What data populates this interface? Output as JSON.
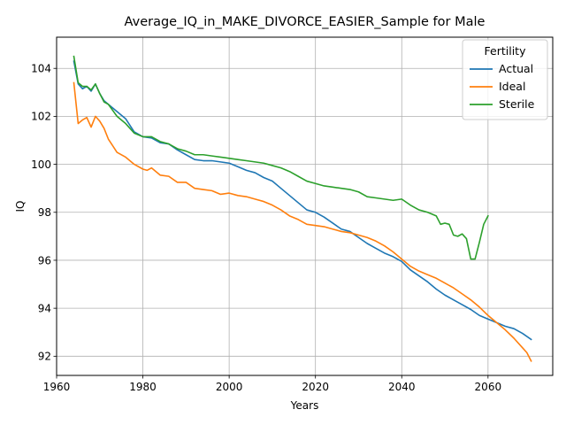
{
  "chart_data": {
    "type": "line",
    "title": "Average_IQ_in_MAKE_DIVORCE_EASIER_Sample for Male",
    "xlabel": "Years",
    "ylabel": "IQ",
    "xlim": [
      1960,
      2075
    ],
    "ylim": [
      91.2,
      105.3
    ],
    "xticks": [
      1960,
      1980,
      2000,
      2020,
      2040,
      2060
    ],
    "yticks": [
      92,
      94,
      96,
      98,
      100,
      102,
      104
    ],
    "grid": true,
    "legend": {
      "title": "Fertility",
      "placement": "top-right"
    },
    "series": [
      {
        "name": "Actual",
        "color": "#1f77b4",
        "points": [
          [
            1964,
            104.3
          ],
          [
            1965,
            103.35
          ],
          [
            1966,
            103.15
          ],
          [
            1967,
            103.25
          ],
          [
            1968,
            103.05
          ],
          [
            1969,
            103.35
          ],
          [
            1970,
            102.95
          ],
          [
            1971,
            102.65
          ],
          [
            1972,
            102.5
          ],
          [
            1974,
            102.2
          ],
          [
            1976,
            101.9
          ],
          [
            1978,
            101.35
          ],
          [
            1980,
            101.15
          ],
          [
            1982,
            101.1
          ],
          [
            1984,
            100.9
          ],
          [
            1986,
            100.85
          ],
          [
            1988,
            100.6
          ],
          [
            1990,
            100.4
          ],
          [
            1992,
            100.2
          ],
          [
            1994,
            100.15
          ],
          [
            1996,
            100.15
          ],
          [
            1998,
            100.1
          ],
          [
            2000,
            100.05
          ],
          [
            2002,
            99.9
          ],
          [
            2004,
            99.75
          ],
          [
            2006,
            99.65
          ],
          [
            2008,
            99.45
          ],
          [
            2010,
            99.3
          ],
          [
            2012,
            99.0
          ],
          [
            2014,
            98.7
          ],
          [
            2016,
            98.4
          ],
          [
            2018,
            98.1
          ],
          [
            2020,
            98.0
          ],
          [
            2022,
            97.8
          ],
          [
            2024,
            97.55
          ],
          [
            2026,
            97.3
          ],
          [
            2028,
            97.2
          ],
          [
            2030,
            96.95
          ],
          [
            2032,
            96.7
          ],
          [
            2034,
            96.5
          ],
          [
            2036,
            96.3
          ],
          [
            2038,
            96.15
          ],
          [
            2040,
            95.95
          ],
          [
            2042,
            95.6
          ],
          [
            2044,
            95.35
          ],
          [
            2046,
            95.1
          ],
          [
            2048,
            94.8
          ],
          [
            2050,
            94.55
          ],
          [
            2052,
            94.35
          ],
          [
            2054,
            94.15
          ],
          [
            2056,
            93.95
          ],
          [
            2058,
            93.7
          ],
          [
            2060,
            93.55
          ],
          [
            2062,
            93.4
          ],
          [
            2064,
            93.25
          ],
          [
            2066,
            93.15
          ],
          [
            2068,
            92.95
          ],
          [
            2070,
            92.7
          ]
        ]
      },
      {
        "name": "Ideal",
        "color": "#ff7f0e",
        "points": [
          [
            1964,
            103.4
          ],
          [
            1965,
            101.7
          ],
          [
            1966,
            101.85
          ],
          [
            1967,
            101.95
          ],
          [
            1968,
            101.55
          ],
          [
            1969,
            102.0
          ],
          [
            1970,
            101.8
          ],
          [
            1971,
            101.5
          ],
          [
            1972,
            101.05
          ],
          [
            1974,
            100.5
          ],
          [
            1976,
            100.3
          ],
          [
            1978,
            100.0
          ],
          [
            1980,
            99.8
          ],
          [
            1981,
            99.75
          ],
          [
            1982,
            99.85
          ],
          [
            1984,
            99.55
          ],
          [
            1986,
            99.5
          ],
          [
            1988,
            99.25
          ],
          [
            1990,
            99.25
          ],
          [
            1992,
            99.0
          ],
          [
            1994,
            98.95
          ],
          [
            1996,
            98.9
          ],
          [
            1998,
            98.75
          ],
          [
            2000,
            98.8
          ],
          [
            2002,
            98.7
          ],
          [
            2004,
            98.65
          ],
          [
            2006,
            98.55
          ],
          [
            2008,
            98.45
          ],
          [
            2010,
            98.3
          ],
          [
            2012,
            98.1
          ],
          [
            2014,
            97.85
          ],
          [
            2016,
            97.7
          ],
          [
            2018,
            97.5
          ],
          [
            2020,
            97.45
          ],
          [
            2022,
            97.4
          ],
          [
            2024,
            97.3
          ],
          [
            2026,
            97.2
          ],
          [
            2028,
            97.15
          ],
          [
            2030,
            97.05
          ],
          [
            2032,
            96.95
          ],
          [
            2034,
            96.8
          ],
          [
            2036,
            96.6
          ],
          [
            2038,
            96.35
          ],
          [
            2040,
            96.05
          ],
          [
            2042,
            95.75
          ],
          [
            2044,
            95.55
          ],
          [
            2046,
            95.4
          ],
          [
            2048,
            95.25
          ],
          [
            2050,
            95.05
          ],
          [
            2052,
            94.85
          ],
          [
            2054,
            94.6
          ],
          [
            2056,
            94.35
          ],
          [
            2058,
            94.05
          ],
          [
            2060,
            93.7
          ],
          [
            2062,
            93.4
          ],
          [
            2064,
            93.1
          ],
          [
            2066,
            92.75
          ],
          [
            2068,
            92.35
          ],
          [
            2069,
            92.15
          ],
          [
            2070,
            91.8
          ]
        ]
      },
      {
        "name": "Sterile",
        "color": "#2ca02c",
        "points": [
          [
            1964,
            104.5
          ],
          [
            1965,
            103.4
          ],
          [
            1966,
            103.25
          ],
          [
            1967,
            103.25
          ],
          [
            1968,
            103.1
          ],
          [
            1969,
            103.35
          ],
          [
            1970,
            102.95
          ],
          [
            1971,
            102.6
          ],
          [
            1972,
            102.5
          ],
          [
            1974,
            102.0
          ],
          [
            1976,
            101.7
          ],
          [
            1978,
            101.3
          ],
          [
            1980,
            101.15
          ],
          [
            1982,
            101.15
          ],
          [
            1984,
            100.95
          ],
          [
            1986,
            100.85
          ],
          [
            1988,
            100.65
          ],
          [
            1990,
            100.55
          ],
          [
            1992,
            100.4
          ],
          [
            1994,
            100.4
          ],
          [
            1996,
            100.35
          ],
          [
            1998,
            100.3
          ],
          [
            2000,
            100.25
          ],
          [
            2002,
            100.2
          ],
          [
            2004,
            100.15
          ],
          [
            2006,
            100.1
          ],
          [
            2008,
            100.05
          ],
          [
            2010,
            99.95
          ],
          [
            2012,
            99.85
          ],
          [
            2014,
            99.7
          ],
          [
            2016,
            99.5
          ],
          [
            2018,
            99.3
          ],
          [
            2020,
            99.2
          ],
          [
            2022,
            99.1
          ],
          [
            2024,
            99.05
          ],
          [
            2026,
            99.0
          ],
          [
            2028,
            98.95
          ],
          [
            2030,
            98.85
          ],
          [
            2032,
            98.65
          ],
          [
            2034,
            98.6
          ],
          [
            2036,
            98.55
          ],
          [
            2038,
            98.5
          ],
          [
            2040,
            98.55
          ],
          [
            2042,
            98.3
          ],
          [
            2044,
            98.1
          ],
          [
            2046,
            98.0
          ],
          [
            2048,
            97.85
          ],
          [
            2049,
            97.5
          ],
          [
            2050,
            97.55
          ],
          [
            2051,
            97.5
          ],
          [
            2052,
            97.05
          ],
          [
            2053,
            97.0
          ],
          [
            2054,
            97.1
          ],
          [
            2055,
            96.9
          ],
          [
            2056,
            96.05
          ],
          [
            2057,
            96.05
          ],
          [
            2058,
            96.75
          ],
          [
            2059,
            97.5
          ],
          [
            2060,
            97.85
          ]
        ]
      }
    ]
  }
}
